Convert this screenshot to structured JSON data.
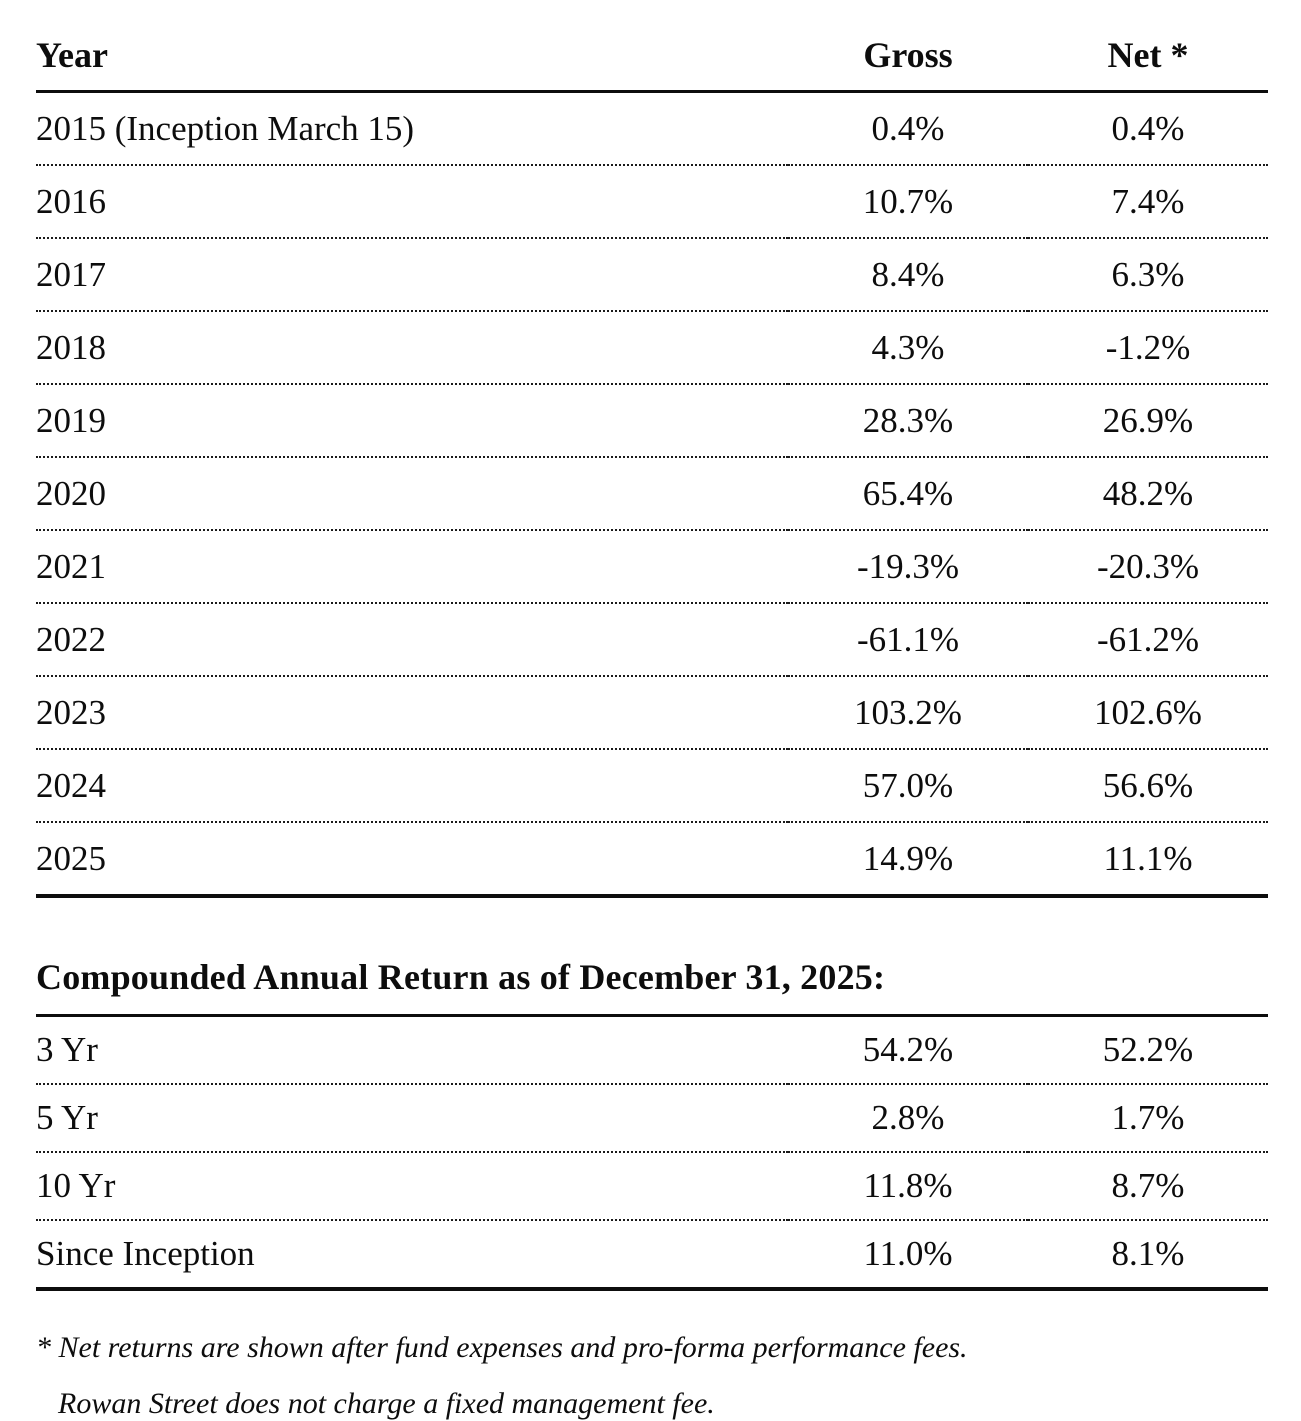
{
  "returns_table": {
    "headers": {
      "year": "Year",
      "gross": "Gross",
      "net": "Net *"
    },
    "rows": [
      {
        "year": "2015 (Inception March 15)",
        "gross": "0.4%",
        "net": "0.4%"
      },
      {
        "year": "2016",
        "gross": "10.7%",
        "net": "7.4%"
      },
      {
        "year": "2017",
        "gross": "8.4%",
        "net": "6.3%"
      },
      {
        "year": "2018",
        "gross": "4.3%",
        "net": "-1.2%"
      },
      {
        "year": "2019",
        "gross": "28.3%",
        "net": "26.9%"
      },
      {
        "year": "2020",
        "gross": "65.4%",
        "net": "48.2%"
      },
      {
        "year": "2021",
        "gross": "-19.3%",
        "net": "-20.3%"
      },
      {
        "year": "2022",
        "gross": "-61.1%",
        "net": "-61.2%"
      },
      {
        "year": "2023",
        "gross": "103.2%",
        "net": "102.6%"
      },
      {
        "year": "2024",
        "gross": "57.0%",
        "net": "56.6%"
      },
      {
        "year": "2025",
        "gross": "14.9%",
        "net": "11.1%"
      }
    ]
  },
  "compounded": {
    "title": "Compounded Annual Return as of December 31, 2025:",
    "rows": [
      {
        "label": "3 Yr",
        "gross": "54.2%",
        "net": "52.2%"
      },
      {
        "label": "5 Yr",
        "gross": "2.8%",
        "net": "1.7%"
      },
      {
        "label": "10 Yr",
        "gross": "11.8%",
        "net": "8.7%"
      },
      {
        "label": "Since Inception",
        "gross": "11.0%",
        "net": "8.1%"
      }
    ]
  },
  "footnote": {
    "line1": "* Net returns are shown after fund expenses and pro-forma performance fees.",
    "line2": "Rowan Street does not charge a fixed management fee."
  }
}
